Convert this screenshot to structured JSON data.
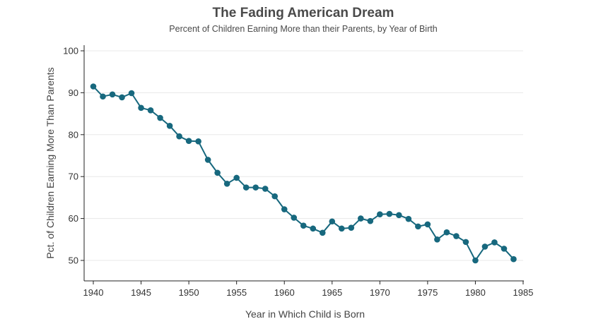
{
  "chart_data": {
    "type": "line",
    "title": "The Fading American Dream",
    "subtitle": "Percent of Children Earning More than their Parents, by Year of Birth",
    "xlabel": "Year in Which Child is Born",
    "ylabel": "Pct. of Children Earning More Than Parents",
    "xlim": [
      1940,
      1985
    ],
    "ylim": [
      45,
      101
    ],
    "xticks": [
      1940,
      1945,
      1950,
      1955,
      1960,
      1965,
      1970,
      1975,
      1980,
      1985
    ],
    "yticks": [
      50,
      60,
      70,
      80,
      90,
      100
    ],
    "grid": true,
    "series": [
      {
        "name": "Pct. of Children Earning More Than Parents",
        "color": "#17687e",
        "x": [
          1940,
          1941,
          1942,
          1943,
          1944,
          1945,
          1946,
          1947,
          1948,
          1949,
          1950,
          1951,
          1952,
          1953,
          1954,
          1955,
          1956,
          1957,
          1958,
          1959,
          1960,
          1961,
          1962,
          1963,
          1964,
          1965,
          1966,
          1967,
          1968,
          1969,
          1970,
          1971,
          1972,
          1973,
          1974,
          1975,
          1976,
          1977,
          1978,
          1979,
          1980,
          1981,
          1982,
          1983,
          1984
        ],
        "y": [
          91.5,
          89.1,
          89.6,
          88.9,
          89.9,
          86.4,
          85.8,
          84.0,
          82.1,
          79.6,
          78.5,
          78.4,
          74.0,
          70.9,
          68.3,
          69.7,
          67.4,
          67.4,
          67.1,
          65.3,
          62.2,
          60.2,
          58.3,
          57.6,
          56.6,
          59.3,
          57.6,
          57.8,
          60.0,
          59.4,
          61.0,
          61.1,
          60.8,
          59.9,
          58.1,
          58.6,
          55.0,
          56.7,
          55.8,
          54.4,
          50.0,
          53.3,
          54.3,
          52.8,
          50.3
        ]
      }
    ]
  }
}
